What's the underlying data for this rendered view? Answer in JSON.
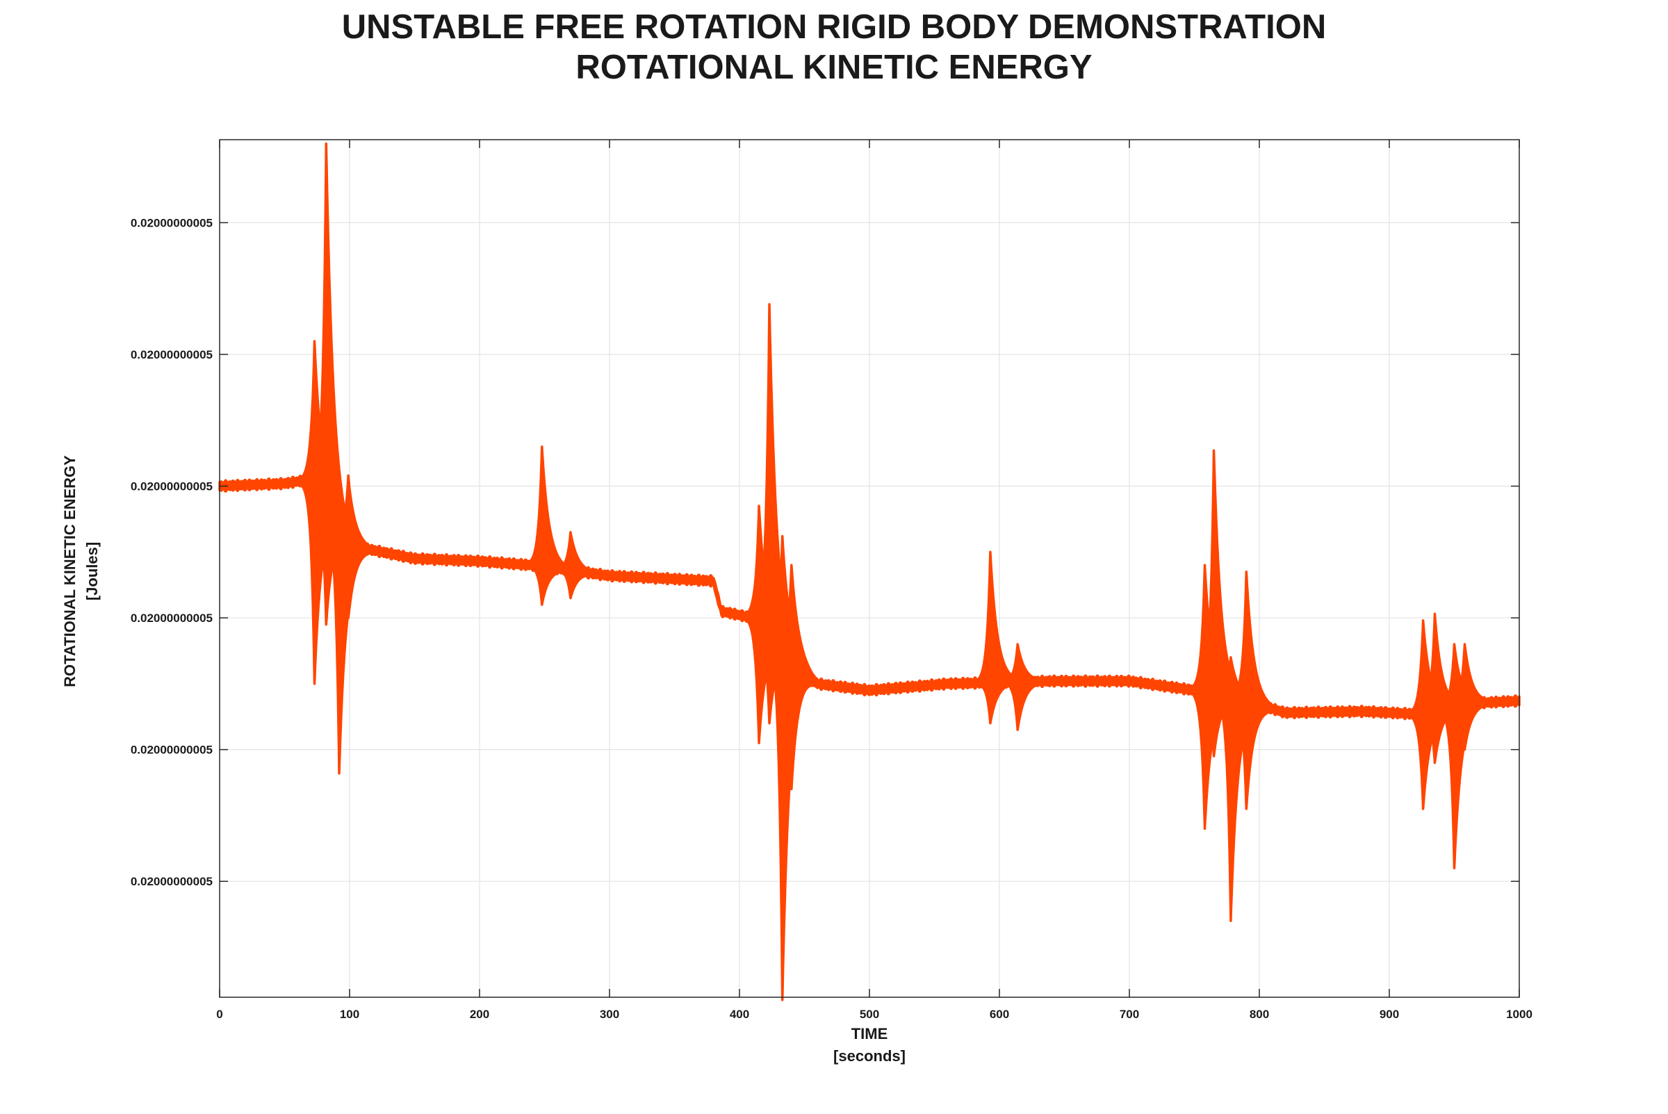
{
  "chart_data": {
    "type": "line",
    "title_line1": "UNSTABLE FREE ROTATION RIGID BODY DEMONSTRATION",
    "title_line2": "ROTATIONAL KINETIC ENERGY",
    "xlabel_line1": "TIME",
    "xlabel_line2": "[seconds]",
    "ylabel_line1": "ROTATIONAL KINETIC ENERGY",
    "ylabel_line2": "[Joules]",
    "xlim": [
      0,
      1000
    ],
    "x_ticks": [
      0,
      100,
      200,
      300,
      400,
      500,
      600,
      700,
      800,
      900,
      1000
    ],
    "x_tick_labels": [
      "0",
      "100",
      "200",
      "300",
      "400",
      "500",
      "600",
      "700",
      "800",
      "900",
      "1000"
    ],
    "y_tick_labels": [
      "0.02000000005",
      "0.02000000005",
      "0.02000000005",
      "0.02000000005",
      "0.02000000005",
      "0.02000000005"
    ],
    "grid": true,
    "series_color": "#ff4500",
    "series": [
      {
        "note_units": "y values are relative offsets in units of one y-tick spacing; tick labels all read 0.02000000005",
        "baseline": [
          [
            0,
            0.0
          ],
          [
            50,
            0.02
          ],
          [
            70,
            0.05
          ],
          [
            100,
            -0.45
          ],
          [
            150,
            -0.55
          ],
          [
            200,
            -0.57
          ],
          [
            240,
            -0.6
          ],
          [
            300,
            -0.68
          ],
          [
            380,
            -0.72
          ],
          [
            386,
            -0.95
          ],
          [
            410,
            -1.0
          ],
          [
            460,
            -1.5
          ],
          [
            500,
            -1.55
          ],
          [
            560,
            -1.5
          ],
          [
            640,
            -1.48
          ],
          [
            700,
            -1.48
          ],
          [
            750,
            -1.55
          ],
          [
            780,
            -1.6
          ],
          [
            820,
            -1.72
          ],
          [
            880,
            -1.71
          ],
          [
            920,
            -1.73
          ],
          [
            960,
            -1.65
          ],
          [
            1000,
            -1.63
          ]
        ],
        "bursts": [
          {
            "t": 73,
            "max": 1.1,
            "min": -1.5
          },
          {
            "t": 82,
            "max": 2.6,
            "min": -1.05
          },
          {
            "t": 92,
            "max": 0.05,
            "min": -2.18
          },
          {
            "t": 99,
            "max": 0.08,
            "min": -1.0
          },
          {
            "t": 248,
            "max": 0.3,
            "min": -0.9
          },
          {
            "t": 270,
            "max": -0.35,
            "min": -0.85
          },
          {
            "t": 415,
            "max": -0.15,
            "min": -1.95
          },
          {
            "t": 423,
            "max": 1.38,
            "min": -1.8
          },
          {
            "t": 433,
            "max": -0.38,
            "min": -3.9
          },
          {
            "t": 440,
            "max": -0.6,
            "min": -2.3
          },
          {
            "t": 593,
            "max": -0.5,
            "min": -1.8
          },
          {
            "t": 614,
            "max": -1.2,
            "min": -1.85
          },
          {
            "t": 758,
            "max": -0.6,
            "min": -2.6
          },
          {
            "t": 765,
            "max": 0.27,
            "min": -2.05
          },
          {
            "t": 778,
            "max": -1.3,
            "min": -3.3
          },
          {
            "t": 790,
            "max": -0.65,
            "min": -2.45
          },
          {
            "t": 926,
            "max": -1.02,
            "min": -2.45
          },
          {
            "t": 935,
            "max": -0.97,
            "min": -2.1
          },
          {
            "t": 950,
            "max": -1.2,
            "min": -2.9
          },
          {
            "t": 958,
            "max": -1.2,
            "min": -2.0
          }
        ]
      }
    ]
  }
}
